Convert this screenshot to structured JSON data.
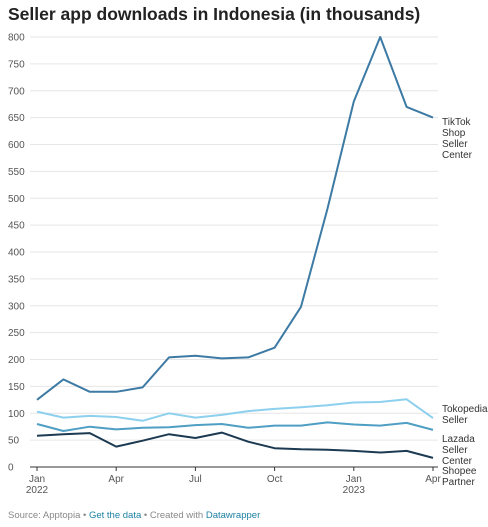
{
  "chart_data": {
    "type": "line",
    "title": "Seller app downloads in Indonesia (in thousands)",
    "xlabel": "",
    "ylabel": "",
    "ylim": [
      0,
      800
    ],
    "yticks": [
      0,
      50,
      100,
      150,
      200,
      250,
      300,
      350,
      400,
      450,
      500,
      550,
      600,
      650,
      700,
      750,
      800
    ],
    "x": [
      "2022-01",
      "2022-02",
      "2022-03",
      "2022-04",
      "2022-05",
      "2022-06",
      "2022-07",
      "2022-08",
      "2022-09",
      "2022-10",
      "2022-11",
      "2022-12",
      "2023-01",
      "2023-02",
      "2023-03",
      "2023-04"
    ],
    "xticks": [
      {
        "x": "2022-01",
        "label": [
          "Jan",
          "2022"
        ]
      },
      {
        "x": "2022-04",
        "label": [
          "Apr"
        ]
      },
      {
        "x": "2022-07",
        "label": [
          "Jul"
        ]
      },
      {
        "x": "2022-10",
        "label": [
          "Oct"
        ]
      },
      {
        "x": "2023-01",
        "label": [
          "Jan",
          "2023"
        ]
      },
      {
        "x": "2023-04",
        "label": [
          "Apr"
        ]
      }
    ],
    "grid": true,
    "series": [
      {
        "name": "TikTok Shop Seller Center",
        "label_lines": [
          "TikTok",
          "Shop",
          "Seller",
          "Center"
        ],
        "color": "#3d7aa4",
        "values": [
          125,
          163,
          140,
          140,
          148,
          204,
          207,
          202,
          204,
          222,
          298,
          480,
          680,
          800,
          670,
          650
        ]
      },
      {
        "name": "Tokopedia Seller",
        "label_lines": [
          "Tokopedia",
          "Seller"
        ],
        "color": "#8dd0ee",
        "values": [
          103,
          92,
          95,
          93,
          86,
          100,
          92,
          97,
          104,
          108,
          111,
          115,
          120,
          121,
          126,
          91
        ]
      },
      {
        "name": "Lazada Seller Center",
        "label_lines": [
          "Lazada",
          "Seller",
          "Center"
        ],
        "color": "#4f9ec4",
        "values": [
          80,
          67,
          75,
          70,
          73,
          74,
          78,
          80,
          73,
          77,
          77,
          83,
          79,
          77,
          82,
          69
        ]
      },
      {
        "name": "Shopee Partner",
        "label_lines": [
          "Shopee",
          "Partner"
        ],
        "color": "#1c3a52",
        "values": [
          58,
          61,
          63,
          38,
          49,
          61,
          54,
          64,
          47,
          35,
          33,
          32,
          30,
          27,
          30,
          17
        ]
      }
    ]
  },
  "footer": {
    "source": "Source: Apptopia",
    "sep1": " • ",
    "get_data": "Get the data",
    "sep2": " • Created with ",
    "tool": "Datawrapper"
  }
}
